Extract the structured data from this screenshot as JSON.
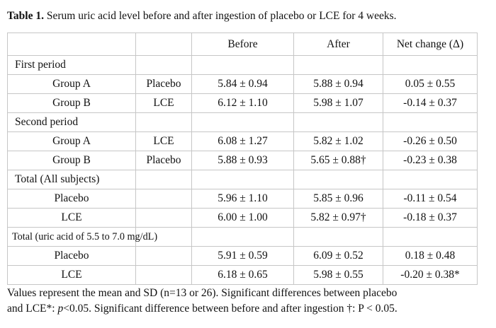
{
  "caption": {
    "label": "Table 1.",
    "text": "Serum uric acid level before and after ingestion of placebo or LCE for 4 weeks."
  },
  "table": {
    "headers": [
      "",
      "",
      "Before",
      "After",
      "Net change (Δ)"
    ],
    "rows": [
      {
        "type": "section",
        "label": "First period"
      },
      {
        "type": "data",
        "group": "Group A",
        "treatment": "Placebo",
        "before": "5.84 ± 0.94",
        "after": "5.88 ± 0.94",
        "net": "0.05 ± 0.55"
      },
      {
        "type": "data",
        "group": "Group B",
        "treatment": "LCE",
        "before": "6.12 ± 1.10",
        "after": "5.98 ± 1.07",
        "net": "-0.14 ± 0.37"
      },
      {
        "type": "section",
        "label": "Second period"
      },
      {
        "type": "data",
        "group": "Group A",
        "treatment": "LCE",
        "before": "6.08 ± 1.27",
        "after": "5.82 ± 1.02",
        "net": "-0.26 ± 0.50"
      },
      {
        "type": "data",
        "group": "Group B",
        "treatment": "Placebo",
        "before": "5.88 ± 0.93",
        "after": "5.65 ± 0.88†",
        "net": "-0.23 ± 0.38"
      },
      {
        "type": "section",
        "label": "Total (All subjects)"
      },
      {
        "type": "data",
        "group": "Placebo",
        "treatment": "",
        "before": "5.96 ± 1.10",
        "after": "5.85 ± 0.96",
        "net": "-0.11 ± 0.54"
      },
      {
        "type": "data",
        "group": "LCE",
        "treatment": "",
        "before": "6.00 ± 1.00",
        "after": "5.82 ± 0.97†",
        "net": "-0.18 ± 0.37"
      },
      {
        "type": "section",
        "label": "Total (uric acid of 5.5 to 7.0 mg/dL)",
        "small": true
      },
      {
        "type": "data",
        "group": "Placebo",
        "treatment": "",
        "before": "5.91 ± 0.59",
        "after": "6.09 ± 0.52",
        "net": "0.18 ± 0.48"
      },
      {
        "type": "data",
        "group": "LCE",
        "treatment": "",
        "before": "6.18 ± 0.65",
        "after": "5.98 ± 0.55",
        "net": "-0.20 ± 0.38*"
      }
    ]
  },
  "footnote": {
    "line1": "Values represent the mean and SD (n=13 or 26). Significant differences between placebo",
    "line2_pre": "and LCE*: ",
    "line2_p": "p",
    "line2_post": "<0.05. Significant difference between before and after ingestion †: P < 0.05."
  }
}
